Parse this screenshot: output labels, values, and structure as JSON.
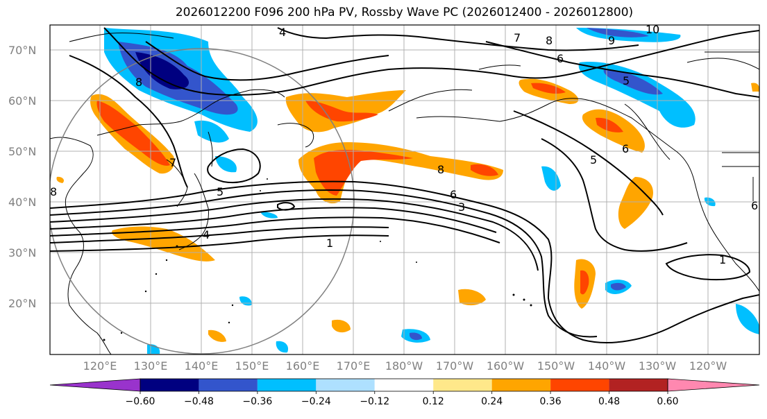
{
  "title": "2026012200 F096 200 hPa PV, Rossby Wave PC (2026012400 - 2026012800)",
  "lat_labels": [
    "70°N",
    "60°N",
    "50°N",
    "40°N",
    "30°N",
    "20°N"
  ],
  "lon_labels": [
    "120°E",
    "130°E",
    "140°E",
    "150°E",
    "160°E",
    "170°E",
    "180°W",
    "170°W",
    "160°W",
    "150°W",
    "140°W",
    "130°W",
    "120°W"
  ],
  "colorbar": {
    "ticks": [
      "−0.60",
      "−0.48",
      "−0.36",
      "−0.24",
      "−0.12",
      "0.12",
      "0.24",
      "0.36",
      "0.48",
      "0.60"
    ],
    "colors": [
      "#9933cc",
      "#000080",
      "#3355cc",
      "#00bfff",
      "#aee0ff",
      "#ffffff",
      "#ffe88a",
      "#ffa500",
      "#ff4500",
      "#b22222",
      "#ff88b0"
    ]
  },
  "contour_labels": [
    "4",
    "7",
    "8",
    "6",
    "5",
    "9",
    "10",
    "8",
    "6",
    "5",
    "6",
    "8",
    "3",
    "1",
    "7",
    "4",
    "5",
    "1",
    "8",
    "6"
  ]
}
